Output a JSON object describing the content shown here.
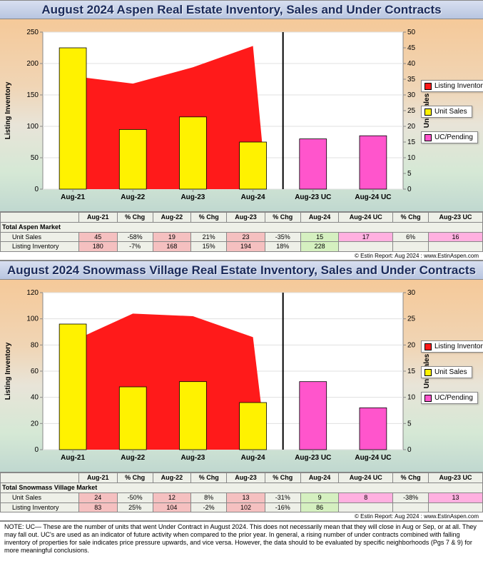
{
  "aspen": {
    "title": "August 2024 Aspen Real Estate Inventory, Sales and Under Contracts",
    "chart": {
      "categories": [
        "Aug-21",
        "Aug-22",
        "Aug-23",
        "Aug-24",
        "Aug-23 UC",
        "Aug-24 UC"
      ],
      "listing_inventory": [
        180,
        168,
        194,
        228,
        null,
        null
      ],
      "unit_sales": [
        45,
        19,
        23,
        15,
        null,
        null
      ],
      "uc_pending": [
        null,
        null,
        null,
        null,
        16,
        17
      ],
      "divider_after_index": 4,
      "left_axis": {
        "label": "Listing Inventory",
        "min": 0,
        "max": 250,
        "step": 50
      },
      "right_axis": {
        "label": "Unit Sales",
        "min": 0,
        "max": 50,
        "step": 5
      },
      "plot_background": "#ffffff",
      "colors": {
        "inventory": "#ff1a1a",
        "inventory_area": "#ff1a1a",
        "unit_sales": "#fff200",
        "uc_pending": "#ff55cc",
        "border": "#000000"
      },
      "legend": {
        "inventory": "Listing Inventory",
        "unit_sales": "Unit Sales",
        "uc_pending": "UC/Pending"
      }
    },
    "table": {
      "section": "Total Aspen Market",
      "headers": [
        "Aug-21",
        "% Chg",
        "Aug-22",
        "% Chg",
        "Aug-23",
        "% Chg",
        "Aug-24",
        "Aug-24 UC",
        "% Chg",
        "Aug-23 UC"
      ],
      "rows": [
        {
          "label": "Unit Sales",
          "cells": [
            "45",
            "-58%",
            "19",
            "21%",
            "23",
            "-35%",
            "15",
            "17",
            "6%",
            "16"
          ],
          "bg": [
            "#f5c0c0",
            "",
            "#f5c0c0",
            "",
            "#f5c0c0",
            "",
            "#d5f0c0",
            "#ffb0e0",
            "",
            "#ffb0e0"
          ]
        },
        {
          "label": "Listing Inventory",
          "cells": [
            "180",
            "-7%",
            "168",
            "15%",
            "194",
            "18%",
            "228",
            "",
            "",
            ""
          ],
          "bg": [
            "#f5c0c0",
            "",
            "#f5c0c0",
            "",
            "#f5c0c0",
            "",
            "#d5f0c0",
            "",
            "",
            ""
          ]
        }
      ]
    }
  },
  "snowmass": {
    "title": "August 2024 Snowmass Village Real Estate Inventory, Sales and Under Contracts",
    "chart": {
      "categories": [
        "Aug-21",
        "Aug-22",
        "Aug-23",
        "Aug-24",
        "Aug-23 UC",
        "Aug-24 UC"
      ],
      "listing_inventory": [
        83,
        104,
        102,
        86,
        null,
        null
      ],
      "unit_sales": [
        24,
        12,
        13,
        9,
        null,
        null
      ],
      "uc_pending": [
        null,
        null,
        null,
        null,
        13,
        8
      ],
      "divider_after_index": 4,
      "left_axis": {
        "label": "Listing Inventory",
        "min": 0,
        "max": 120,
        "step": 20
      },
      "right_axis": {
        "label": "Unit Sales",
        "min": 0,
        "max": 30,
        "step": 5
      },
      "plot_background": "#ffffff",
      "colors": {
        "inventory": "#ff1a1a",
        "inventory_area": "#ff1a1a",
        "unit_sales": "#fff200",
        "uc_pending": "#ff55cc",
        "border": "#000000"
      },
      "legend": {
        "inventory": "Listing Inventory",
        "unit_sales": "Unit Sales",
        "uc_pending": "UC/Pending"
      }
    },
    "table": {
      "section": "Total Snowmass Village Market",
      "headers": [
        "Aug-21",
        "% Chg",
        "Aug-22",
        "% Chg",
        "Aug-23",
        "% Chg",
        "Aug-24",
        "Aug-24 UC",
        "% Chg",
        "Aug-23 UC"
      ],
      "rows": [
        {
          "label": "Unit Sales",
          "cells": [
            "24",
            "-50%",
            "12",
            "8%",
            "13",
            "-31%",
            "9",
            "8",
            "-38%",
            "13"
          ],
          "bg": [
            "#f5c0c0",
            "",
            "#f5c0c0",
            "",
            "#f5c0c0",
            "",
            "#d5f0c0",
            "#ffb0e0",
            "",
            "#ffb0e0"
          ]
        },
        {
          "label": "Listing Inventory",
          "cells": [
            "83",
            "25%",
            "104",
            "-2%",
            "102",
            "-16%",
            "86",
            "",
            "",
            ""
          ],
          "bg": [
            "#f5c0c0",
            "",
            "#f5c0c0",
            "",
            "#f5c0c0",
            "",
            "#d5f0c0",
            "",
            "",
            ""
          ]
        }
      ]
    }
  },
  "source_line": "© Estin Report: Aug 2024 : www.EstinAspen.com",
  "note": "NOTE: UC— These are the number of units that went Under Contract in August 2024. This does not necessarily mean that they will close in Aug or Sep, or at all. They may fall out. UC's are used as an indicator of future activity when compared to the prior year. In general, a rising number of under contracts combined with falling inventory of properties for sale indicates price pressure upwards, and vice versa. However, the data should to be evaluated by specific neighborhoods (Pgs 7 & 9) for more meaningful conclusions."
}
